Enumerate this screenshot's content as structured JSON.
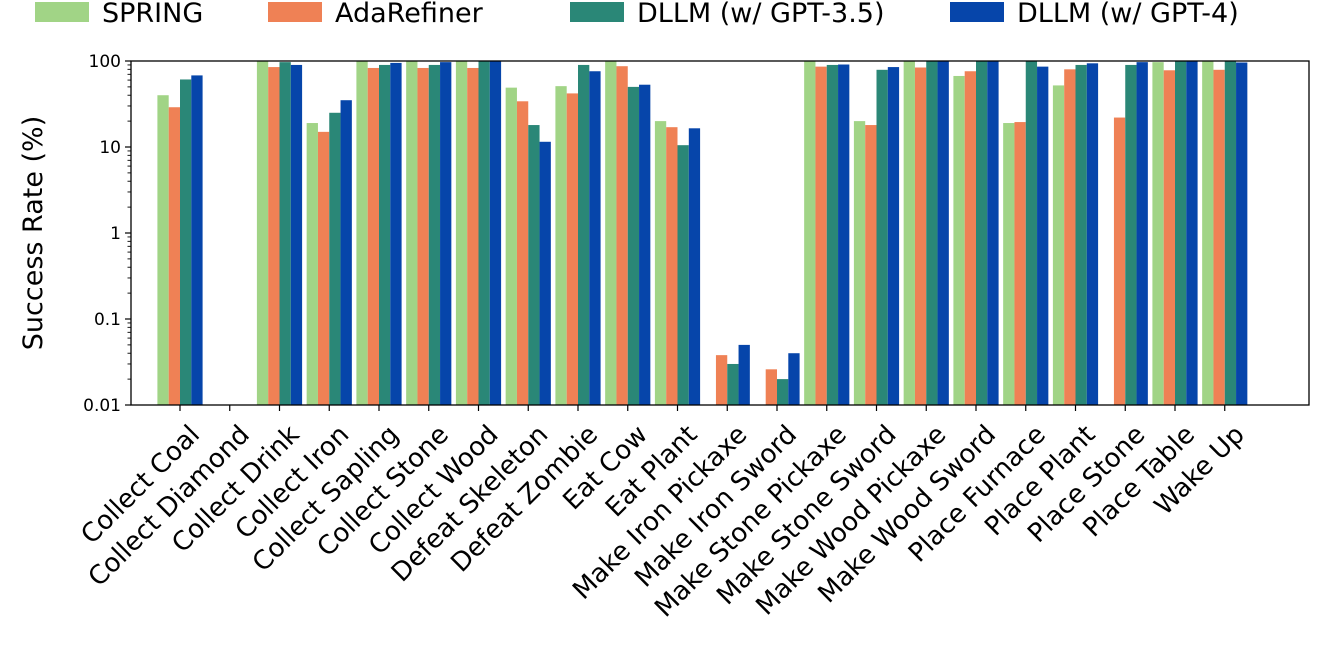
{
  "chart_data": {
    "type": "bar",
    "title": "",
    "xlabel": "",
    "ylabel": "Success Rate (%)",
    "yscale": "log",
    "ylim": [
      0.01,
      100
    ],
    "yticks": [
      {
        "value": 0.01,
        "label": "0.01"
      },
      {
        "value": 0.1,
        "label": "0.1"
      },
      {
        "value": 1,
        "label": "1"
      },
      {
        "value": 10,
        "label": "10"
      },
      {
        "value": 100,
        "label": "100"
      }
    ],
    "grid": false,
    "legend_position": "top",
    "categories": [
      "Collect Coal",
      "Collect Diamond",
      "Collect Drink",
      "Collect Iron",
      "Collect Sapling",
      "Collect Stone",
      "Collect Wood",
      "Defeat Skeleton",
      "Defeat Zombie",
      "Eat Cow",
      "Eat Plant",
      "Make Iron Pickaxe",
      "Make Iron Sword",
      "Make Stone Pickaxe",
      "Make Stone Sword",
      "Make Wood Pickaxe",
      "Make Wood Sword",
      "Place Furnace",
      "Place Plant",
      "Place Stone",
      "Place Table",
      "Wake Up"
    ],
    "series": [
      {
        "name": "SPRING",
        "color": "#a1d486",
        "values": [
          40,
          null,
          100,
          19,
          100,
          100,
          100,
          49,
          51,
          100,
          20,
          null,
          null,
          100,
          20,
          100,
          67,
          19,
          52,
          null,
          97,
          100
        ]
      },
      {
        "name": "AdaRefiner",
        "color": "#ef8155",
        "values": [
          29,
          null,
          85,
          15,
          83,
          83,
          83,
          34,
          42,
          87,
          17,
          0.038,
          0.026,
          86,
          18,
          84,
          76,
          19.5,
          80,
          22,
          78,
          79
        ]
      },
      {
        "name": "DLLM (w/ GPT-3.5)",
        "color": "#2a8777",
        "values": [
          61,
          null,
          97,
          25,
          90,
          90,
          100,
          18,
          90,
          50,
          10.5,
          0.03,
          0.02,
          90,
          79,
          100,
          100,
          100,
          90,
          90,
          100,
          100
        ]
      },
      {
        "name": "DLLM (w/ GPT-4)",
        "color": "#0645aa",
        "values": [
          68,
          null,
          90,
          35,
          95,
          97,
          100,
          11.5,
          76,
          53,
          16.5,
          0.05,
          0.04,
          91,
          85,
          100,
          100,
          86,
          94,
          97,
          100,
          96
        ]
      }
    ]
  }
}
